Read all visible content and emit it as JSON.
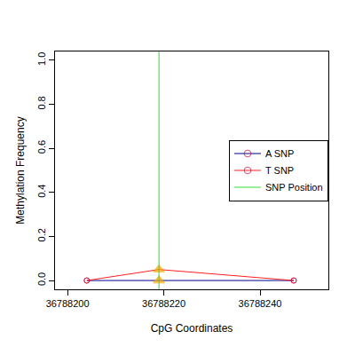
{
  "chart_data": {
    "type": "line",
    "x_label": "CpG Coordinates",
    "y_label": "Methylation Frequency",
    "xlim": [
      36788197.4,
      36788254.2
    ],
    "xticks": [
      36788200,
      36788220,
      36788240
    ],
    "ylim": [
      -0.04,
      1.04
    ],
    "yticks": [
      {
        "value": 0,
        "label": "0.0"
      },
      {
        "value": 0.2,
        "label": "0.2"
      },
      {
        "value": 0.4,
        "label": "0.4"
      },
      {
        "value": 0.6,
        "label": "0.6"
      },
      {
        "value": 0.8,
        "label": "0.8"
      },
      {
        "value": 1,
        "label": "1.0"
      }
    ],
    "grid": false,
    "legend": "right",
    "series": [
      {
        "name": "A SNP",
        "color": "#00008B",
        "x": [
          36788204,
          36788219,
          36788247
        ],
        "values": [
          0,
          0,
          0
        ],
        "marker": "circle"
      },
      {
        "name": "T SNP",
        "color": "#FF2020",
        "x": [
          36788204,
          36788219,
          36788247
        ],
        "values": [
          0,
          0.05,
          0
        ],
        "marker": "circle"
      },
      {
        "name": "SNP Position",
        "color": "#33DD33",
        "x": [
          36788219,
          36788219
        ],
        "values": [
          -0.04,
          1.04
        ],
        "marker": "none"
      }
    ]
  }
}
